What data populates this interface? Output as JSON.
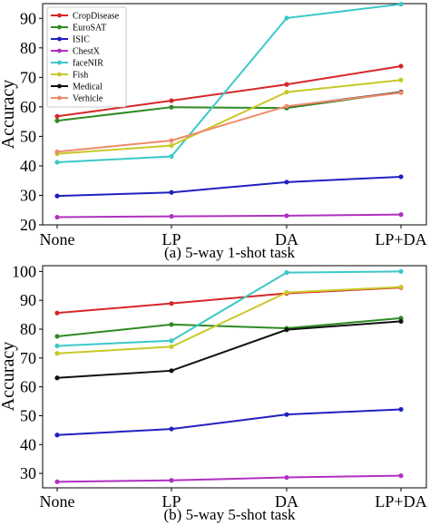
{
  "chart_data": [
    {
      "type": "line",
      "caption": "(a) 5-way 1-shot task",
      "ylabel": "Accuracy",
      "xlabel": "",
      "categories": [
        "None",
        "LP",
        "DA",
        "LP+DA"
      ],
      "yticks": [
        20,
        30,
        40,
        50,
        60,
        70,
        80,
        90
      ],
      "ylim": [
        20,
        95
      ],
      "grid": false,
      "legend": "top-left",
      "series": [
        {
          "name": "CropDisease",
          "color": "#d62728",
          "values": [
            56.8,
            62.1,
            67.6,
            73.8
          ]
        },
        {
          "name": "EuroSAT",
          "color": "#2e8b22",
          "values": [
            55.3,
            59.9,
            59.6,
            65.0
          ]
        },
        {
          "name": "ISIC",
          "color": "#2020c0",
          "values": [
            29.8,
            31.0,
            34.5,
            36.3
          ]
        },
        {
          "name": "ChestX",
          "color": "#b030c0",
          "values": [
            22.6,
            22.9,
            23.1,
            23.5
          ]
        },
        {
          "name": "faceNIR",
          "color": "#3cc8c8",
          "values": [
            41.2,
            43.2,
            90.1,
            94.8
          ]
        },
        {
          "name": "Fish",
          "color": "#c8c828",
          "values": [
            44.1,
            46.9,
            65.0,
            69.1
          ]
        },
        {
          "name": "Medical",
          "color": "#111111",
          "values": [
            null,
            null,
            60.1,
            65.0
          ]
        },
        {
          "name": "Verhicle",
          "color": "#f08c6c",
          "values": [
            44.8,
            48.6,
            60.2,
            64.8
          ]
        }
      ]
    },
    {
      "type": "line",
      "caption": "(b) 5-way 5-shot task",
      "ylabel": "Accuracy",
      "xlabel": "",
      "categories": [
        "None",
        "LP",
        "DA",
        "LP+DA"
      ],
      "yticks": [
        30,
        40,
        50,
        60,
        70,
        80,
        90,
        100
      ],
      "ylim": [
        25,
        102
      ],
      "grid": false,
      "legend": "none",
      "series": [
        {
          "name": "CropDisease",
          "color": "#d62728",
          "values": [
            85.6,
            88.9,
            92.4,
            94.4
          ]
        },
        {
          "name": "EuroSAT",
          "color": "#2e8b22",
          "values": [
            77.5,
            81.6,
            80.3,
            83.8
          ]
        },
        {
          "name": "ISIC",
          "color": "#2020c0",
          "values": [
            43.3,
            45.4,
            50.4,
            52.2
          ]
        },
        {
          "name": "ChestX",
          "color": "#b030c0",
          "values": [
            27.1,
            27.6,
            28.6,
            29.2
          ]
        },
        {
          "name": "faceNIR",
          "color": "#3cc8c8",
          "values": [
            74.2,
            76.0,
            99.6,
            100.0
          ]
        },
        {
          "name": "Fish",
          "color": "#c8c828",
          "values": [
            71.6,
            73.9,
            92.7,
            94.6
          ]
        },
        {
          "name": "Medical",
          "color": "#111111",
          "values": [
            63.1,
            65.6,
            79.8,
            82.7
          ]
        },
        {
          "name": "Verhicle",
          "color": "#f08c6c",
          "values": [
            null,
            null,
            null,
            null
          ]
        }
      ]
    }
  ]
}
